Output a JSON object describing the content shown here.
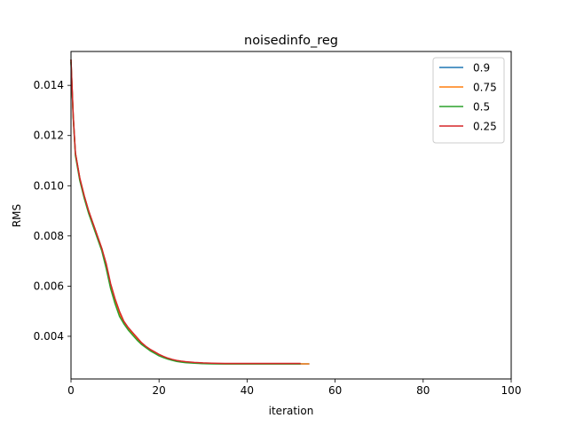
{
  "chart_data": {
    "type": "line",
    "title": "noisedinfo_reg",
    "xlabel": "iteration",
    "ylabel": "RMS",
    "xlim": [
      0,
      100
    ],
    "ylim": [
      0.0023,
      0.01535
    ],
    "xticks": [
      0,
      20,
      40,
      60,
      80,
      100
    ],
    "xtick_labels": [
      "0",
      "20",
      "40",
      "60",
      "80",
      "100"
    ],
    "yticks": [
      0.004,
      0.006,
      0.008,
      0.01,
      0.012,
      0.014
    ],
    "ytick_labels": [
      "0.004",
      "0.006",
      "0.008",
      "0.010",
      "0.012",
      "0.014"
    ],
    "grid": false,
    "legend_position": "top-right",
    "series": [
      {
        "name": "0.9",
        "color": "#1f77b4",
        "x": [
          0,
          0.5,
          1,
          2,
          3,
          4,
          5,
          6,
          7,
          8,
          9,
          10,
          11,
          12,
          13,
          14,
          15,
          16,
          17,
          18,
          19,
          20,
          21,
          22,
          23,
          24,
          25,
          26,
          28,
          30,
          32,
          35,
          40,
          45,
          50,
          54
        ],
        "y": [
          0.015,
          0.0128,
          0.0113,
          0.0103,
          0.0096,
          0.009,
          0.0085,
          0.008,
          0.0075,
          0.0068,
          0.006,
          0.0054,
          0.0049,
          0.00455,
          0.0043,
          0.0041,
          0.0039,
          0.0037,
          0.00358,
          0.00345,
          0.00335,
          0.00325,
          0.00318,
          0.00311,
          0.00306,
          0.00302,
          0.00299,
          0.00297,
          0.00294,
          0.00292,
          0.00291,
          0.0029,
          0.0029,
          0.0029,
          0.0029,
          0.0029
        ]
      },
      {
        "name": "0.75",
        "color": "#ff7f0e",
        "x": [
          0,
          0.5,
          1,
          2,
          3,
          4,
          5,
          6,
          7,
          8,
          9,
          10,
          11,
          12,
          13,
          14,
          15,
          16,
          17,
          18,
          19,
          20,
          21,
          22,
          23,
          24,
          25,
          26,
          28,
          30,
          32,
          35,
          40,
          45,
          50,
          54
        ],
        "y": [
          0.015,
          0.0128,
          0.0113,
          0.0103,
          0.0096,
          0.009,
          0.0085,
          0.008,
          0.0075,
          0.0068,
          0.006,
          0.0054,
          0.0049,
          0.00455,
          0.0043,
          0.0041,
          0.0039,
          0.0037,
          0.00358,
          0.00345,
          0.00335,
          0.00325,
          0.00318,
          0.00311,
          0.00306,
          0.00302,
          0.00299,
          0.00297,
          0.00294,
          0.00292,
          0.00291,
          0.0029,
          0.0029,
          0.0029,
          0.0029,
          0.0029
        ]
      },
      {
        "name": "0.5",
        "color": "#2ca02c",
        "x": [
          0,
          0.5,
          1,
          2,
          3,
          4,
          5,
          6,
          7,
          8,
          9,
          10,
          11,
          12,
          13,
          14,
          15,
          16,
          17,
          18,
          19,
          20,
          21,
          22,
          23,
          24,
          25,
          26,
          28,
          30,
          32,
          35,
          40,
          45,
          50,
          52
        ],
        "y": [
          0.0149,
          0.0127,
          0.0112,
          0.0102,
          0.0095,
          0.0089,
          0.0084,
          0.0079,
          0.0074,
          0.0067,
          0.0059,
          0.0053,
          0.0048,
          0.0045,
          0.00425,
          0.00405,
          0.00385,
          0.00368,
          0.00355,
          0.00342,
          0.00332,
          0.00322,
          0.00315,
          0.00309,
          0.00304,
          0.003,
          0.00297,
          0.00295,
          0.00293,
          0.00291,
          0.0029,
          0.0029,
          0.0029,
          0.0029,
          0.0029,
          0.0029
        ]
      },
      {
        "name": "0.25",
        "color": "#d62728",
        "x": [
          0,
          0.5,
          1,
          2,
          3,
          4,
          5,
          6,
          7,
          8,
          9,
          10,
          11,
          12,
          13,
          14,
          15,
          16,
          17,
          18,
          19,
          20,
          21,
          22,
          23,
          24,
          25,
          26,
          28,
          30,
          32,
          35,
          40,
          45,
          50,
          52
        ],
        "y": [
          0.015,
          0.0128,
          0.0113,
          0.0103,
          0.0096,
          0.009,
          0.0085,
          0.008,
          0.0075,
          0.0069,
          0.0061,
          0.0055,
          0.005,
          0.0046,
          0.00435,
          0.00415,
          0.00395,
          0.00375,
          0.0036,
          0.00348,
          0.00338,
          0.00328,
          0.0032,
          0.00313,
          0.00308,
          0.00304,
          0.00301,
          0.00299,
          0.00296,
          0.00294,
          0.00293,
          0.00292,
          0.00292,
          0.00292,
          0.00292,
          0.00292
        ]
      }
    ]
  }
}
